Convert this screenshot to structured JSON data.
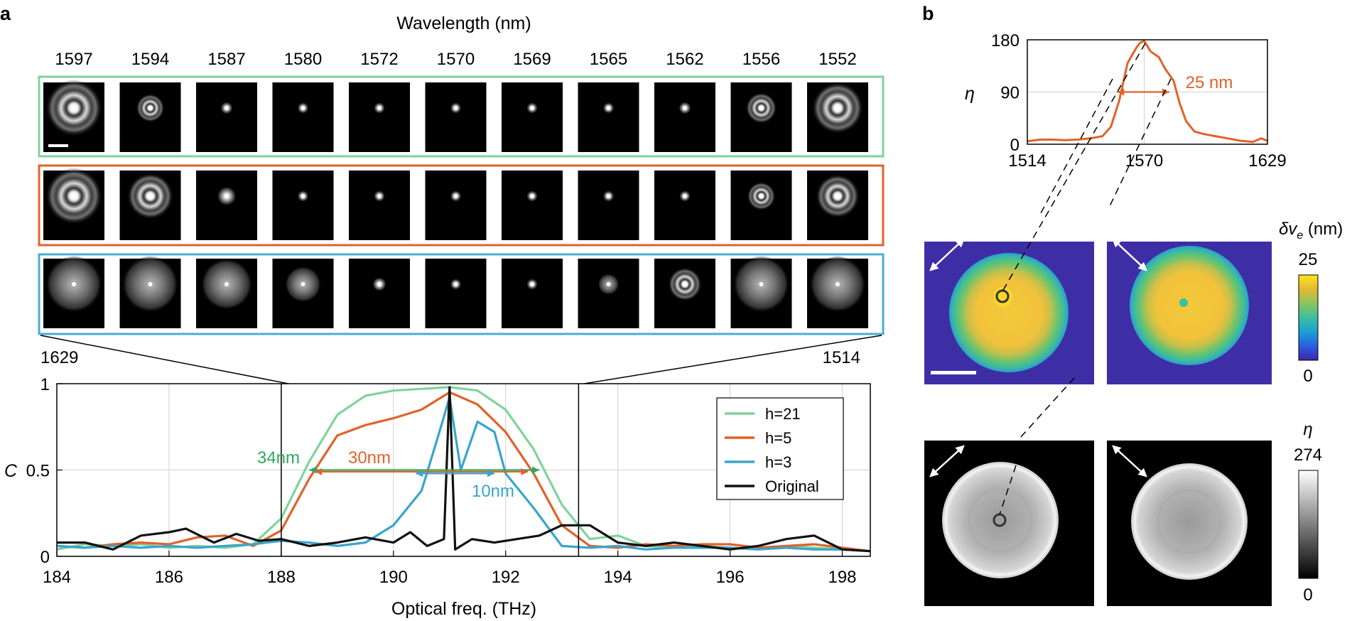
{
  "panel_a": {
    "label": "a",
    "wavelength_header": "Wavelength (nm)",
    "wavelengths": [
      "1597",
      "1594",
      "1587",
      "1580",
      "1572",
      "1570",
      "1569",
      "1565",
      "1562",
      "1556",
      "1552"
    ],
    "row_colors": [
      "#7fd39b",
      "#e0622a",
      "#4aaed0"
    ],
    "row_blobs": [
      [
        [
          1.0,
          1
        ],
        [
          0.45,
          1
        ],
        [
          0.12,
          0
        ],
        [
          0.1,
          0
        ],
        [
          0.1,
          0
        ],
        [
          0.1,
          0
        ],
        [
          0.1,
          0
        ],
        [
          0.1,
          0
        ],
        [
          0.12,
          0
        ],
        [
          0.5,
          1
        ],
        [
          0.9,
          1
        ]
      ],
      [
        [
          1.0,
          1
        ],
        [
          0.8,
          1
        ],
        [
          0.25,
          0
        ],
        [
          0.1,
          0
        ],
        [
          0.1,
          0
        ],
        [
          0.1,
          0
        ],
        [
          0.1,
          0
        ],
        [
          0.1,
          0
        ],
        [
          0.1,
          0
        ],
        [
          0.45,
          1
        ],
        [
          0.75,
          1
        ]
      ],
      [
        [
          1.0,
          2
        ],
        [
          1.0,
          2
        ],
        [
          0.9,
          2
        ],
        [
          0.6,
          2
        ],
        [
          0.15,
          0
        ],
        [
          0.1,
          0
        ],
        [
          0.1,
          0
        ],
        [
          0.3,
          2
        ],
        [
          0.55,
          1
        ],
        [
          1.0,
          2
        ],
        [
          1.0,
          2
        ]
      ]
    ],
    "zoom_left_label": "1629",
    "zoom_right_label": "1514",
    "accent_green": "#2ea860",
    "accent_orange": "#e0622a",
    "accent_blue": "#3aa4cc"
  },
  "chart_data": [
    {
      "type": "line",
      "title": "",
      "xlabel": "Optical freq. (THz)",
      "ylabel": "C",
      "xlim": [
        184,
        198.5
      ],
      "ylim": [
        0,
        1
      ],
      "xticks": [
        "184",
        "186",
        "188",
        "190",
        "192",
        "194",
        "196",
        "198"
      ],
      "yticks": [
        "0",
        "0.5",
        "1"
      ],
      "grid": true,
      "legend_position": "top-right",
      "highlight_range": [
        188,
        193.3
      ],
      "annotations": [
        {
          "text": "34nm",
          "x_from": 188.5,
          "x_to": 192.6,
          "y": 0.5,
          "color": "#2ea860"
        },
        {
          "text": "30nm",
          "x_from": 188.6,
          "x_to": 192.4,
          "y": 0.49,
          "color": "#e0622a"
        },
        {
          "text": "10nm",
          "x_from": 190.4,
          "x_to": 191.8,
          "y": 0.48,
          "color": "#3aa4cc"
        }
      ],
      "series": [
        {
          "name": "h=21",
          "color": "#7fd39b",
          "x": [
            184,
            184.5,
            185,
            185.5,
            186,
            186.5,
            187,
            187.5,
            188,
            188.5,
            189,
            189.5,
            190,
            190.5,
            191,
            191.5,
            192,
            192.5,
            193,
            193.5,
            194,
            194.5,
            195,
            195.5,
            196,
            196.5,
            197,
            197.5,
            198,
            198.5
          ],
          "y": [
            0.04,
            0.07,
            0.06,
            0.07,
            0.05,
            0.06,
            0.05,
            0.07,
            0.22,
            0.55,
            0.82,
            0.93,
            0.96,
            0.97,
            0.98,
            0.96,
            0.85,
            0.62,
            0.3,
            0.1,
            0.12,
            0.06,
            0.05,
            0.06,
            0.05,
            0.04,
            0.06,
            0.05,
            0.04,
            0.03
          ]
        },
        {
          "name": "h=5",
          "color": "#e0622a",
          "x": [
            184,
            184.5,
            185,
            185.5,
            186,
            186.5,
            187,
            187.5,
            188,
            188.5,
            189,
            189.5,
            190,
            190.5,
            191,
            191.5,
            192,
            192.5,
            193,
            193.5,
            194,
            194.5,
            195,
            195.5,
            196,
            196.5,
            197,
            197.5,
            198,
            198.5
          ],
          "y": [
            0.06,
            0.05,
            0.07,
            0.08,
            0.07,
            0.11,
            0.12,
            0.06,
            0.15,
            0.45,
            0.7,
            0.76,
            0.8,
            0.85,
            0.95,
            0.88,
            0.72,
            0.48,
            0.18,
            0.06,
            0.05,
            0.07,
            0.06,
            0.07,
            0.07,
            0.05,
            0.06,
            0.07,
            0.05,
            0.03
          ]
        },
        {
          "name": "h=3",
          "color": "#3aa4cc",
          "x": [
            184,
            184.5,
            185,
            185.5,
            186,
            186.5,
            187,
            187.5,
            188,
            188.5,
            189,
            189.5,
            190,
            190.5,
            190.8,
            191,
            191.2,
            191.5,
            191.8,
            192,
            192.5,
            193,
            193.5,
            194,
            194.5,
            195,
            195.5,
            196,
            196.5,
            197,
            197.5,
            198,
            198.5
          ],
          "y": [
            0.06,
            0.05,
            0.06,
            0.05,
            0.06,
            0.05,
            0.06,
            0.07,
            0.09,
            0.08,
            0.06,
            0.08,
            0.18,
            0.38,
            0.7,
            0.92,
            0.5,
            0.78,
            0.72,
            0.48,
            0.28,
            0.06,
            0.05,
            0.06,
            0.04,
            0.05,
            0.05,
            0.05,
            0.04,
            0.05,
            0.04,
            0.04,
            0.03
          ]
        },
        {
          "name": "Original",
          "color": "#111111",
          "x": [
            184,
            184.5,
            185,
            185.5,
            186,
            186.3,
            186.8,
            187.2,
            187.6,
            188,
            188.5,
            189,
            189.5,
            190,
            190.3,
            190.6,
            190.9,
            191,
            191.1,
            191.4,
            191.8,
            192.2,
            192.6,
            193,
            193.5,
            194,
            194.5,
            195,
            195.5,
            196,
            196.5,
            197,
            197.5,
            198,
            198.5
          ],
          "y": [
            0.08,
            0.08,
            0.04,
            0.12,
            0.14,
            0.16,
            0.08,
            0.13,
            0.09,
            0.1,
            0.06,
            0.08,
            0.11,
            0.08,
            0.14,
            0.06,
            0.1,
            0.98,
            0.04,
            0.1,
            0.08,
            0.1,
            0.12,
            0.18,
            0.18,
            0.08,
            0.06,
            0.08,
            0.06,
            0.04,
            0.06,
            0.1,
            0.12,
            0.04,
            0.03
          ]
        }
      ]
    },
    {
      "type": "line",
      "title": "",
      "xlabel": "",
      "ylabel": "η",
      "xlim": [
        1514,
        1629
      ],
      "ylim": [
        0,
        180
      ],
      "xticks": [
        "1514",
        "1570",
        "1629"
      ],
      "yticks": [
        "0",
        "90",
        "180"
      ],
      "grid": true,
      "annotations": [
        {
          "text": "25 nm",
          "x_from": 1557,
          "x_to": 1582,
          "y": 90,
          "color": "#e0622a"
        }
      ],
      "series": [
        {
          "name": "η",
          "color": "#e0622a",
          "x": [
            1514,
            1520,
            1526,
            1532,
            1538,
            1544,
            1550,
            1554,
            1558,
            1562,
            1566,
            1568,
            1570,
            1573,
            1577,
            1580,
            1584,
            1587,
            1590,
            1594,
            1598,
            1604,
            1610,
            1616,
            1622,
            1626,
            1629
          ],
          "y": [
            5,
            8,
            8,
            7,
            8,
            10,
            14,
            30,
            75,
            140,
            165,
            175,
            178,
            160,
            150,
            130,
            110,
            70,
            40,
            22,
            18,
            14,
            10,
            6,
            4,
            10,
            6
          ]
        }
      ]
    }
  ],
  "panel_b": {
    "label": "b",
    "color_label": "δv",
    "color_label_sub": "e",
    "color_label_unit": " (nm)",
    "color_max": "25",
    "color_min": "0",
    "gray_label": "η",
    "gray_max": "274",
    "gray_min": "0",
    "colormap": [
      "#3d26a8",
      "#2a5fe0",
      "#1aa0d4",
      "#3cbfa0",
      "#8cc460",
      "#e4b834",
      "#f8e61c"
    ],
    "background_color": "#3e2ea6"
  }
}
